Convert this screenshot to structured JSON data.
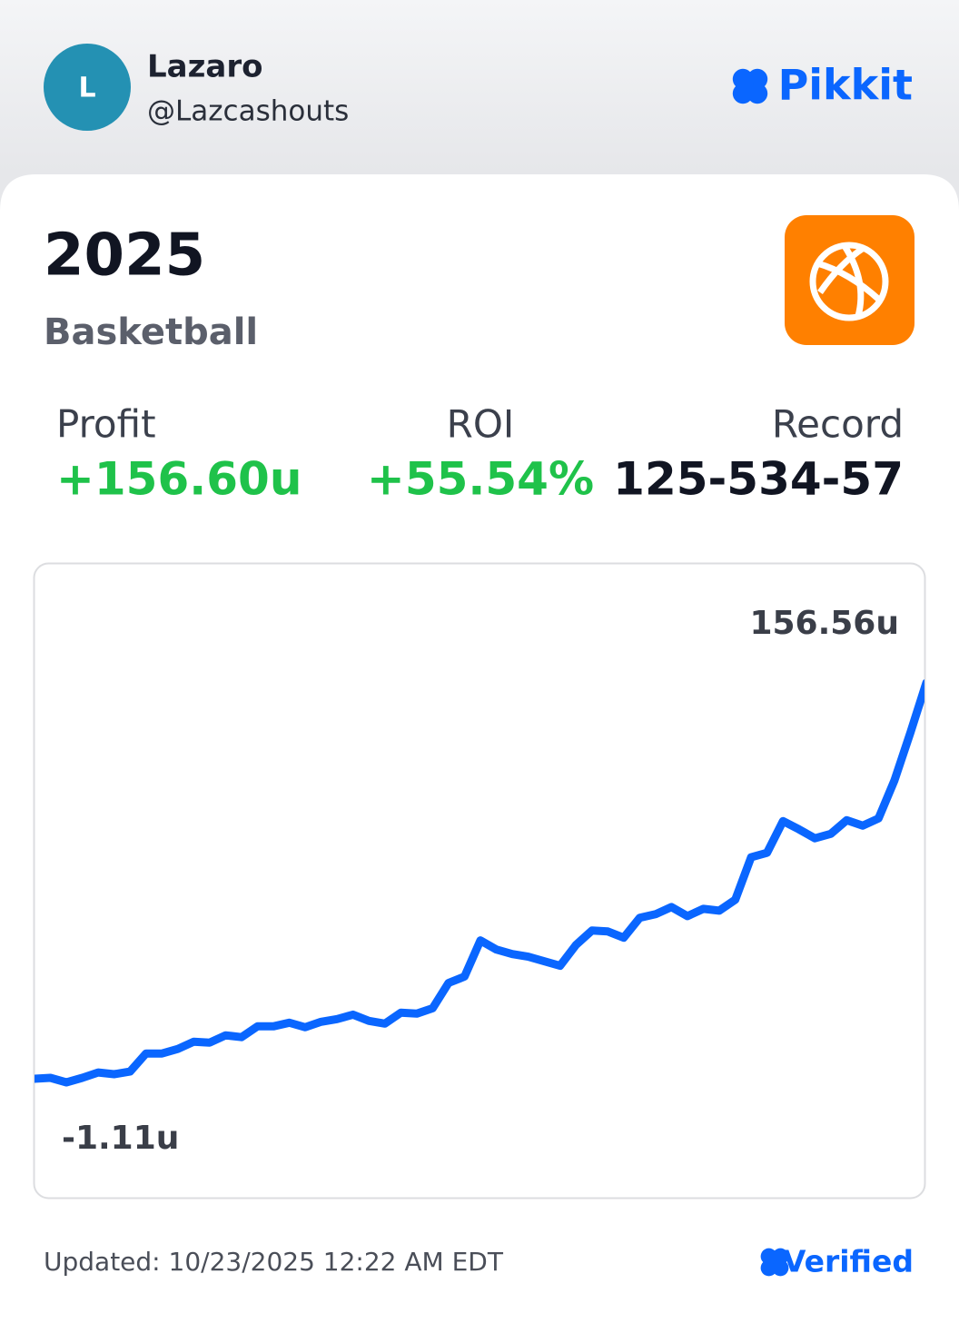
{
  "header": {
    "avatar_letter": "L",
    "name": "Lazaro",
    "handle": "@Lazcashouts",
    "brand": "Pikkit"
  },
  "card": {
    "year": "2025",
    "sport": "Basketball",
    "stats": [
      {
        "label": "Profit",
        "value": "+156.60u"
      },
      {
        "label": "ROI",
        "value": "+55.54%"
      },
      {
        "label": "Record",
        "value": "125-534-57"
      }
    ]
  },
  "chart_data": {
    "type": "line",
    "color": "#0a66ff",
    "values": [
      0.32,
      0.67,
      -1.11,
      0.67,
      2.81,
      2.1,
      3.17,
      10.3,
      10.3,
      12.09,
      14.94,
      14.58,
      17.44,
      16.73,
      21.01,
      21.01,
      22.43,
      20.65,
      22.79,
      23.86,
      25.64,
      23.15,
      22.08,
      26.36,
      26.0,
      28.14,
      38.13,
      40.62,
      54.89,
      51.32,
      49.54,
      48.47,
      46.69,
      44.9,
      53.11,
      58.82,
      58.46,
      55.96,
      63.81,
      65.24,
      68.09,
      64.52,
      67.38,
      66.66,
      70.94,
      87.71,
      89.49,
      101.98,
      98.77,
      95.2,
      96.98,
      102.33,
      100.19,
      103.05,
      118.03,
      136.93,
      156.56
    ],
    "ylim": [
      -1.11,
      156.56
    ],
    "max_label": {
      "value": 156.56,
      "label": "156.56u"
    },
    "min_label": {
      "value": -1.11,
      "label": "-1.11u"
    }
  },
  "footer": {
    "updated": "Updated: 10/23/2025 12:22 AM EDT",
    "verified": "Verified"
  }
}
